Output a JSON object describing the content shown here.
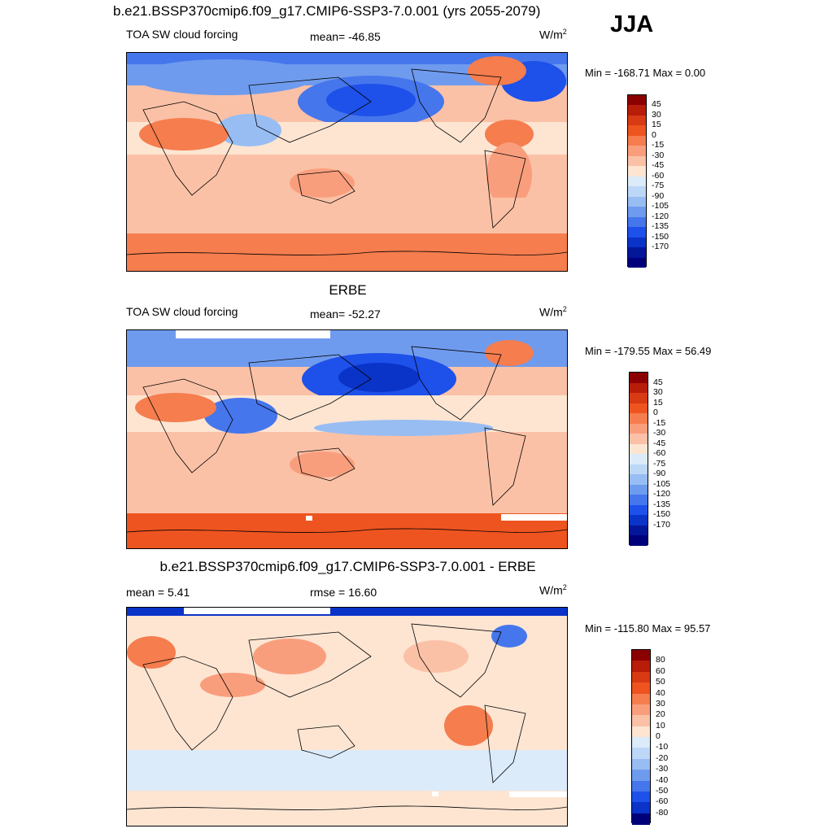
{
  "header": {
    "title": "b.e21.BSSP370cmip6.f09_g17.CMIP6-SSP3-7.0.001 (yrs 2055-2079)",
    "season": "JJA"
  },
  "colors": {
    "forcing_palette": [
      "#8b0000",
      "#b81d0a",
      "#d83a14",
      "#ee5420",
      "#f57d4e",
      "#f99e7d",
      "#fbc1a6",
      "#fde5d2",
      "#dcebfa",
      "#bdd7f7",
      "#98bdf3",
      "#6f9bee",
      "#4576ec",
      "#1e50ea",
      "#0a33c8",
      "#04169a",
      "#00007a"
    ],
    "diff_palette": [
      "#8b0000",
      "#b81d0a",
      "#d83a14",
      "#ee5420",
      "#f57d4e",
      "#f99e7d",
      "#fbc1a6",
      "#fde5d2",
      "#dcebfa",
      "#bdd7f7",
      "#98bdf3",
      "#6f9bee",
      "#4576ec",
      "#1e50ea",
      "#0a33c8",
      "#00007a"
    ]
  },
  "panels": [
    {
      "title": "",
      "left_label": "TOA SW cloud forcing",
      "center_label": "mean= -46.85",
      "units": "W/m",
      "units_exp": "2",
      "minmax": "Min = -168.71 Max =   0.00",
      "colorbar_labels": [
        "45",
        "30",
        "15",
        "0",
        "-15",
        "-30",
        "-45",
        "-60",
        "-75",
        "-90",
        "-105",
        "-120",
        "-135",
        "-150",
        "-170"
      ]
    },
    {
      "title": "ERBE",
      "left_label": "TOA SW cloud forcing",
      "center_label": "mean= -52.27",
      "units": "W/m",
      "units_exp": "2",
      "minmax": "Min = -179.55 Max =  56.49",
      "colorbar_labels": [
        "45",
        "30",
        "15",
        "0",
        "-15",
        "-30",
        "-45",
        "-60",
        "-75",
        "-90",
        "-105",
        "-120",
        "-135",
        "-150",
        "-170"
      ]
    },
    {
      "title": "b.e21.BSSP370cmip6.f09_g17.CMIP6-SSP3-7.0.001 - ERBE",
      "left_label": "mean =   5.41",
      "center_label": "rmse =  16.60",
      "units": "W/m",
      "units_exp": "2",
      "minmax": "Min = -115.80 Max =  95.57",
      "colorbar_labels": [
        "80",
        "60",
        "50",
        "40",
        "30",
        "20",
        "10",
        "0",
        "-10",
        "-20",
        "-30",
        "-40",
        "-50",
        "-60",
        "-80"
      ]
    }
  ],
  "chart_data": [
    {
      "type": "heatmap",
      "title": "TOA SW cloud forcing",
      "mean": -46.85,
      "min": -168.71,
      "max": 0.0,
      "units": "W/m2",
      "levels": [
        45,
        30,
        15,
        0,
        -15,
        -30,
        -45,
        -60,
        -75,
        -90,
        -105,
        -120,
        -135,
        -150,
        -170
      ]
    },
    {
      "type": "heatmap",
      "title": "ERBE",
      "mean": -52.27,
      "min": -179.55,
      "max": 56.49,
      "units": "W/m2",
      "levels": [
        45,
        30,
        15,
        0,
        -15,
        -30,
        -45,
        -60,
        -75,
        -90,
        -105,
        -120,
        -135,
        -150,
        -170
      ]
    },
    {
      "type": "heatmap",
      "title": "b.e21.BSSP370cmip6.f09_g17.CMIP6-SSP3-7.0.001 - ERBE",
      "mean": 5.41,
      "rmse": 16.6,
      "min": -115.8,
      "max": 95.57,
      "units": "W/m2",
      "levels": [
        80,
        60,
        50,
        40,
        30,
        20,
        10,
        0,
        -10,
        -20,
        -30,
        -40,
        -50,
        -60,
        -80
      ]
    }
  ]
}
